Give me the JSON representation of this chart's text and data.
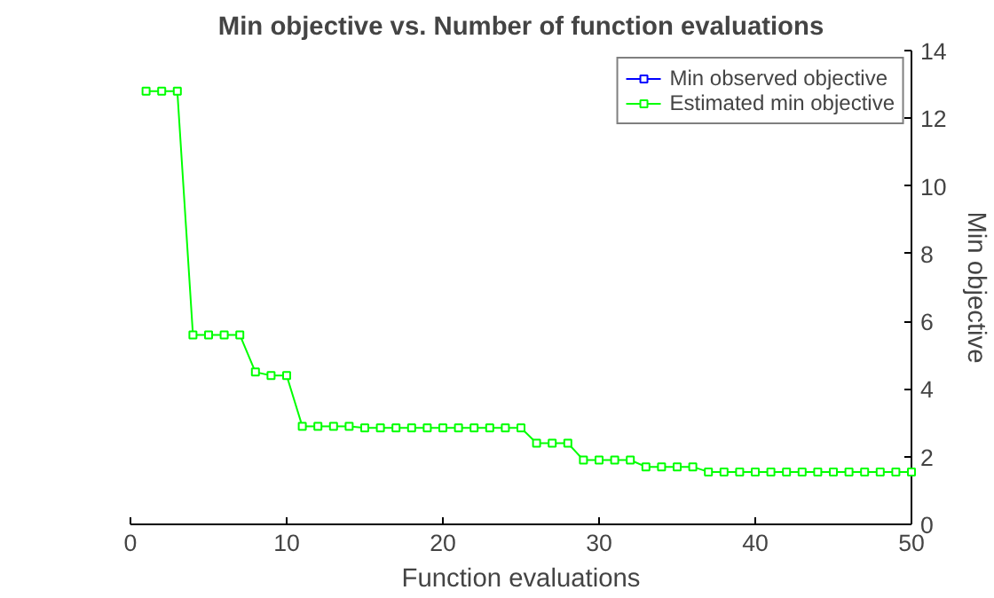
{
  "chart_data": {
    "type": "line",
    "title": "Min objective vs. Number of function evaluations",
    "xlabel": "Function evaluations",
    "ylabel": "Min objective",
    "x": [
      1,
      2,
      3,
      4,
      5,
      6,
      7,
      8,
      9,
      10,
      11,
      12,
      13,
      14,
      15,
      16,
      17,
      18,
      19,
      20,
      21,
      22,
      23,
      24,
      25,
      26,
      27,
      28,
      29,
      30,
      31,
      32,
      33,
      34,
      35,
      36,
      37,
      38,
      39,
      40,
      41,
      42,
      43,
      44,
      45,
      46,
      47,
      48,
      49,
      50
    ],
    "series": [
      {
        "name": "Min observed objective",
        "color": "#0000ff",
        "values": [
          null,
          null,
          null,
          null,
          null,
          null,
          null,
          null,
          null,
          null,
          null,
          null,
          null,
          null,
          null,
          null,
          null,
          null,
          null,
          null,
          null,
          null,
          null,
          null,
          null,
          null,
          null,
          null,
          null,
          null,
          null,
          null,
          null,
          null,
          null,
          null,
          null,
          null,
          null,
          null,
          null,
          null,
          null,
          null,
          null,
          null,
          null,
          null,
          null,
          null
        ]
      },
      {
        "name": "Estimated min objective",
        "color": "#00ff00",
        "values": [
          12.8,
          12.8,
          12.8,
          5.6,
          5.6,
          5.6,
          5.6,
          4.5,
          4.4,
          4.4,
          2.9,
          2.9,
          2.9,
          2.9,
          2.85,
          2.85,
          2.85,
          2.85,
          2.85,
          2.85,
          2.85,
          2.85,
          2.85,
          2.85,
          2.85,
          2.4,
          2.4,
          2.4,
          1.9,
          1.9,
          1.9,
          1.9,
          1.7,
          1.7,
          1.7,
          1.7,
          1.55,
          1.55,
          1.55,
          1.55,
          1.55,
          1.55,
          1.55,
          1.55,
          1.55,
          1.55,
          1.55,
          1.55,
          1.55,
          1.55
        ]
      }
    ],
    "xlim": [
      0,
      50
    ],
    "xticks": [
      0,
      10,
      20,
      30,
      40,
      50
    ],
    "ylim": [
      0,
      14
    ],
    "yticks": [
      0,
      2,
      4,
      6,
      8,
      10,
      12,
      14
    ],
    "grid": false,
    "legend": "top right",
    "marker": "square",
    "line_style": "solid"
  }
}
